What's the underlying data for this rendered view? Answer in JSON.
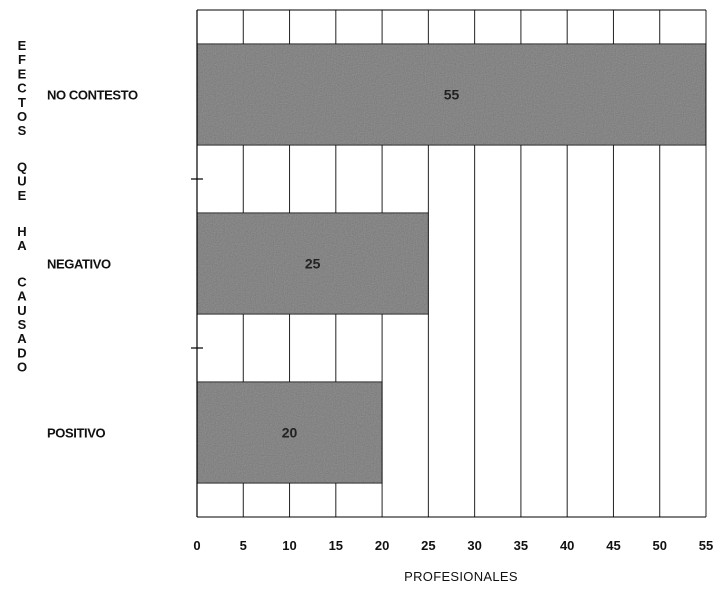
{
  "chart_data": {
    "type": "bar",
    "orientation": "horizontal",
    "categories": [
      "NO CONTESTO",
      "NEGATIVO",
      "POSITIVO"
    ],
    "values": [
      55,
      25,
      20
    ],
    "data_labels": [
      "55",
      "25",
      "20"
    ],
    "xlabel": "PROFESIONALES",
    "ylabel": "EFECTOS QUE HA CAUSADO",
    "xlim": [
      0,
      55
    ],
    "xticks": [
      "0",
      "5",
      "10",
      "15",
      "20",
      "25",
      "30",
      "35",
      "40",
      "45",
      "50",
      "55"
    ],
    "grid": true,
    "legend": "none",
    "bar_color": "#9a9a9a"
  }
}
